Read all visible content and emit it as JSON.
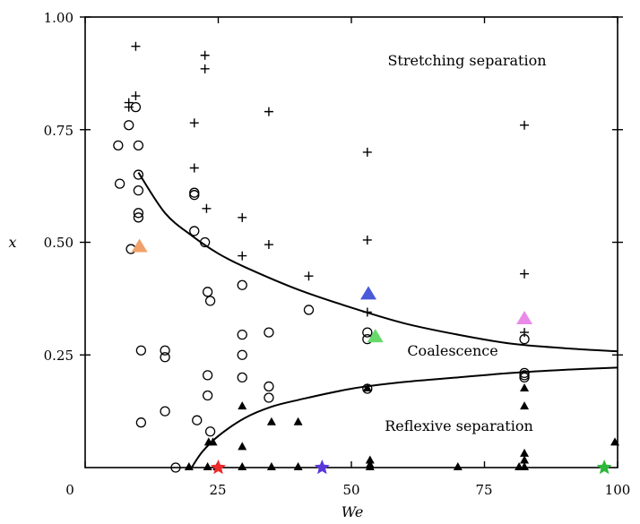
{
  "chart_data": {
    "type": "scatter",
    "title": "",
    "xlabel": "We",
    "ylabel": "x",
    "xlim": [
      0,
      100
    ],
    "ylim": [
      0,
      1.0
    ],
    "x_ticks": [
      {
        "value": 0,
        "label": "0"
      },
      {
        "value": 25,
        "label": "25"
      },
      {
        "value": 50,
        "label": "50"
      },
      {
        "value": 75,
        "label": "75"
      },
      {
        "value": 100,
        "label": "100"
      }
    ],
    "y_ticks": [
      {
        "value": 0.25,
        "label": "0.25"
      },
      {
        "value": 0.5,
        "label": "0.50"
      },
      {
        "value": 0.75,
        "label": "0.75"
      },
      {
        "value": 1.0,
        "label": "1.00"
      }
    ],
    "region_labels": [
      {
        "text": "Stretching separation",
        "x": 70,
        "y": 0.905
      },
      {
        "text": "Coalescence",
        "x": 72,
        "y": 0.255
      },
      {
        "text": "Reflexive separation",
        "x": 73,
        "y": 0.085
      }
    ],
    "curves": [
      {
        "name": "upper boundary",
        "points": [
          [
            10,
            0.655
          ],
          [
            15,
            0.565
          ],
          [
            20,
            0.515
          ],
          [
            25,
            0.475
          ],
          [
            30,
            0.445
          ],
          [
            40,
            0.395
          ],
          [
            50,
            0.355
          ],
          [
            60,
            0.32
          ],
          [
            70,
            0.295
          ],
          [
            80,
            0.275
          ],
          [
            90,
            0.265
          ],
          [
            100,
            0.258
          ]
        ]
      },
      {
        "name": "lower boundary",
        "points": [
          [
            20,
            0.0
          ],
          [
            22,
            0.035
          ],
          [
            25,
            0.07
          ],
          [
            30,
            0.11
          ],
          [
            35,
            0.135
          ],
          [
            40,
            0.15
          ],
          [
            50,
            0.175
          ],
          [
            60,
            0.19
          ],
          [
            70,
            0.2
          ],
          [
            80,
            0.21
          ],
          [
            90,
            0.217
          ],
          [
            100,
            0.222
          ]
        ]
      }
    ],
    "series": [
      {
        "name": "Stretching separation",
        "marker": "plus",
        "points": [
          [
            9.5,
            0.935
          ],
          [
            9.5,
            0.825
          ],
          [
            8.2,
            0.81
          ],
          [
            8.2,
            0.8
          ],
          [
            22.5,
            0.915
          ],
          [
            22.5,
            0.885
          ],
          [
            20.5,
            0.765
          ],
          [
            20.5,
            0.665
          ],
          [
            22.8,
            0.575
          ],
          [
            29.5,
            0.555
          ],
          [
            29.5,
            0.47
          ],
          [
            34.5,
            0.79
          ],
          [
            34.5,
            0.495
          ],
          [
            42,
            0.425
          ],
          [
            53,
            0.7
          ],
          [
            53,
            0.505
          ],
          [
            53,
            0.345
          ],
          [
            82.5,
            0.76
          ],
          [
            82.5,
            0.43
          ],
          [
            82.5,
            0.3
          ]
        ]
      },
      {
        "name": "Coalescence",
        "marker": "circle",
        "points": [
          [
            8.2,
            0.76
          ],
          [
            9.5,
            0.8
          ],
          [
            6.2,
            0.715
          ],
          [
            10,
            0.715
          ],
          [
            6.5,
            0.63
          ],
          [
            10,
            0.65
          ],
          [
            10,
            0.615
          ],
          [
            10,
            0.565
          ],
          [
            10,
            0.555
          ],
          [
            8.6,
            0.485
          ],
          [
            20.5,
            0.61
          ],
          [
            20.5,
            0.605
          ],
          [
            20.5,
            0.525
          ],
          [
            22.5,
            0.5
          ],
          [
            23,
            0.39
          ],
          [
            23.5,
            0.37
          ],
          [
            29.5,
            0.405
          ],
          [
            10.5,
            0.26
          ],
          [
            15,
            0.26
          ],
          [
            15,
            0.245
          ],
          [
            15,
            0.125
          ],
          [
            10.5,
            0.1
          ],
          [
            23,
            0.205
          ],
          [
            23,
            0.16
          ],
          [
            29.5,
            0.295
          ],
          [
            29.5,
            0.25
          ],
          [
            29.5,
            0.2
          ],
          [
            34.5,
            0.3
          ],
          [
            34.5,
            0.18
          ],
          [
            34.5,
            0.155
          ],
          [
            42,
            0.35
          ],
          [
            53,
            0.3
          ],
          [
            53,
            0.285
          ],
          [
            53,
            0.175
          ],
          [
            82.5,
            0.285
          ],
          [
            82.5,
            0.21
          ],
          [
            82.5,
            0.205
          ],
          [
            82.5,
            0.2
          ],
          [
            21,
            0.105
          ],
          [
            23.5,
            0.08
          ],
          [
            17,
            0.0
          ]
        ]
      },
      {
        "name": "Reflexive separation",
        "marker": "filled-triangle",
        "points": [
          [
            19.5,
            0.0
          ],
          [
            23.2,
            0.055
          ],
          [
            24,
            0.055
          ],
          [
            23,
            0.0
          ],
          [
            24.8,
            0.0
          ],
          [
            29.5,
            0.135
          ],
          [
            29.5,
            0.045
          ],
          [
            29.5,
            0.0
          ],
          [
            35,
            0.1
          ],
          [
            35,
            0.0
          ],
          [
            40,
            0.1
          ],
          [
            40,
            0.0
          ],
          [
            53,
            0.175
          ],
          [
            53.5,
            0.015
          ],
          [
            53.5,
            0.005
          ],
          [
            53.5,
            0.0
          ],
          [
            70,
            0.0
          ],
          [
            81.5,
            0.0
          ],
          [
            82.5,
            0.175
          ],
          [
            82.5,
            0.135
          ],
          [
            82.5,
            0.03
          ],
          [
            82.5,
            0.015
          ],
          [
            82.5,
            0.0
          ],
          [
            99.5,
            0.055
          ]
        ]
      },
      {
        "name": "Highlighted triangles",
        "marker": "colored-triangle",
        "points": [
          {
            "x": 10.2,
            "y": 0.49,
            "color": "#f2a06a"
          },
          {
            "x": 53.2,
            "y": 0.385,
            "color": "#4a5bd8"
          },
          {
            "x": 54.5,
            "y": 0.29,
            "color": "#66d96a"
          },
          {
            "x": 82.5,
            "y": 0.33,
            "color": "#ea8ae8"
          }
        ]
      },
      {
        "name": "Highlighted stars",
        "marker": "colored-star",
        "points": [
          {
            "x": 25,
            "y": 0.0,
            "color": "#ee2a2a"
          },
          {
            "x": 44.5,
            "y": 0.0,
            "color": "#5a38d8"
          },
          {
            "x": 97.5,
            "y": 0.0,
            "color": "#2db83a"
          }
        ]
      }
    ]
  }
}
